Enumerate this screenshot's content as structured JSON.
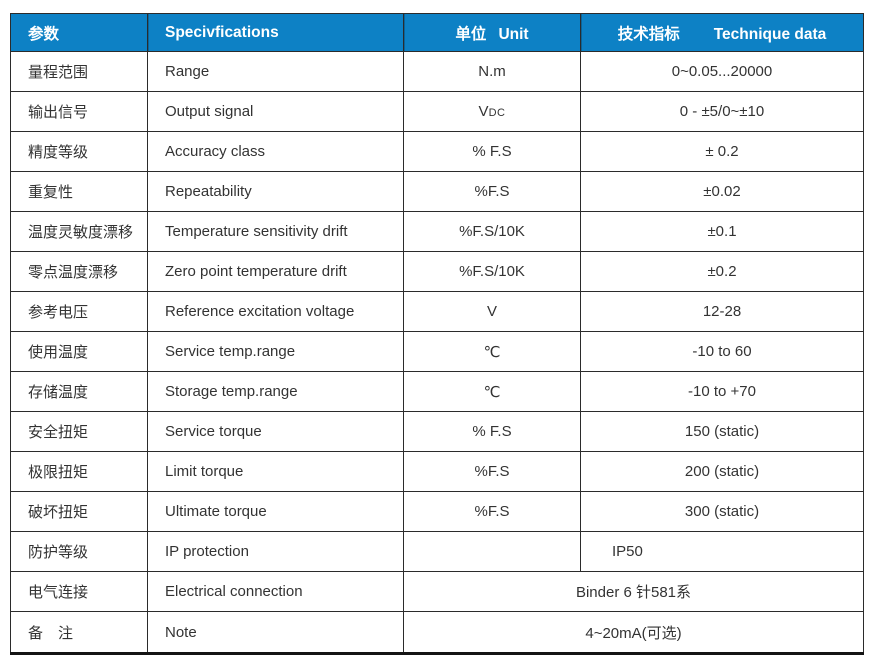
{
  "colors": {
    "header_bg": "#0d81c5",
    "header_text": "#ffffff",
    "body_text": "#333333",
    "border": "#2b2b2b"
  },
  "table": {
    "header": {
      "col1": "参数",
      "col2": "Specivfications",
      "col3_cn": "单位",
      "col3_en": "Unit",
      "col4_cn": "技术指标",
      "col4_en": "Technique data"
    },
    "rows": [
      {
        "cn": "量程范围",
        "en": "Range",
        "unit": "N.m",
        "value": "0~0.05...20000"
      },
      {
        "cn": "输出信号",
        "en": "Output signal",
        "unit": "V",
        "unit_sub": "DC",
        "value": "0 - ±5/0~±10"
      },
      {
        "cn": "精度等级",
        "en": "Accuracy class",
        "unit": "% F.S",
        "value": "± 0.2"
      },
      {
        "cn": "重复性",
        "en": "Repeatability",
        "unit": "%F.S",
        "value": "±0.02"
      },
      {
        "cn": "温度灵敏度漂移",
        "en": "Temperature sensitivity drift",
        "unit": "%F.S/10K",
        "value": "±0.1"
      },
      {
        "cn": "零点温度漂移",
        "en": "Zero point temperature drift",
        "unit": "%F.S/10K",
        "value": "±0.2"
      },
      {
        "cn": "参考电压",
        "en": "Reference excitation voltage",
        "unit": "V",
        "value": "12-28"
      },
      {
        "cn": "使用温度",
        "en": "Service temp.range",
        "unit": "℃",
        "value": "-10 to 60"
      },
      {
        "cn": "存储温度",
        "en": "Storage temp.range",
        "unit": "℃",
        "value": "-10 to +70"
      },
      {
        "cn": "安全扭矩",
        "en": "Service torque",
        "unit": "% F.S",
        "value": "150 (static)"
      },
      {
        "cn": "极限扭矩",
        "en": "Limit torque",
        "unit": "%F.S",
        "value": "200 (static)"
      },
      {
        "cn": "破坏扭矩",
        "en": "Ultimate torque",
        "unit": "%F.S",
        "value": "300 (static)"
      },
      {
        "cn": "防护等级",
        "en": "IP protection",
        "unit": "",
        "value": "IP50",
        "value_align": "left"
      },
      {
        "cn": "电气连接",
        "en": "Electrical connection",
        "merged": true,
        "value": "Binder 6 针581系"
      },
      {
        "cn": "备　注",
        "en": "Note",
        "merged": true,
        "value": "4~20mA(可选)"
      }
    ]
  }
}
